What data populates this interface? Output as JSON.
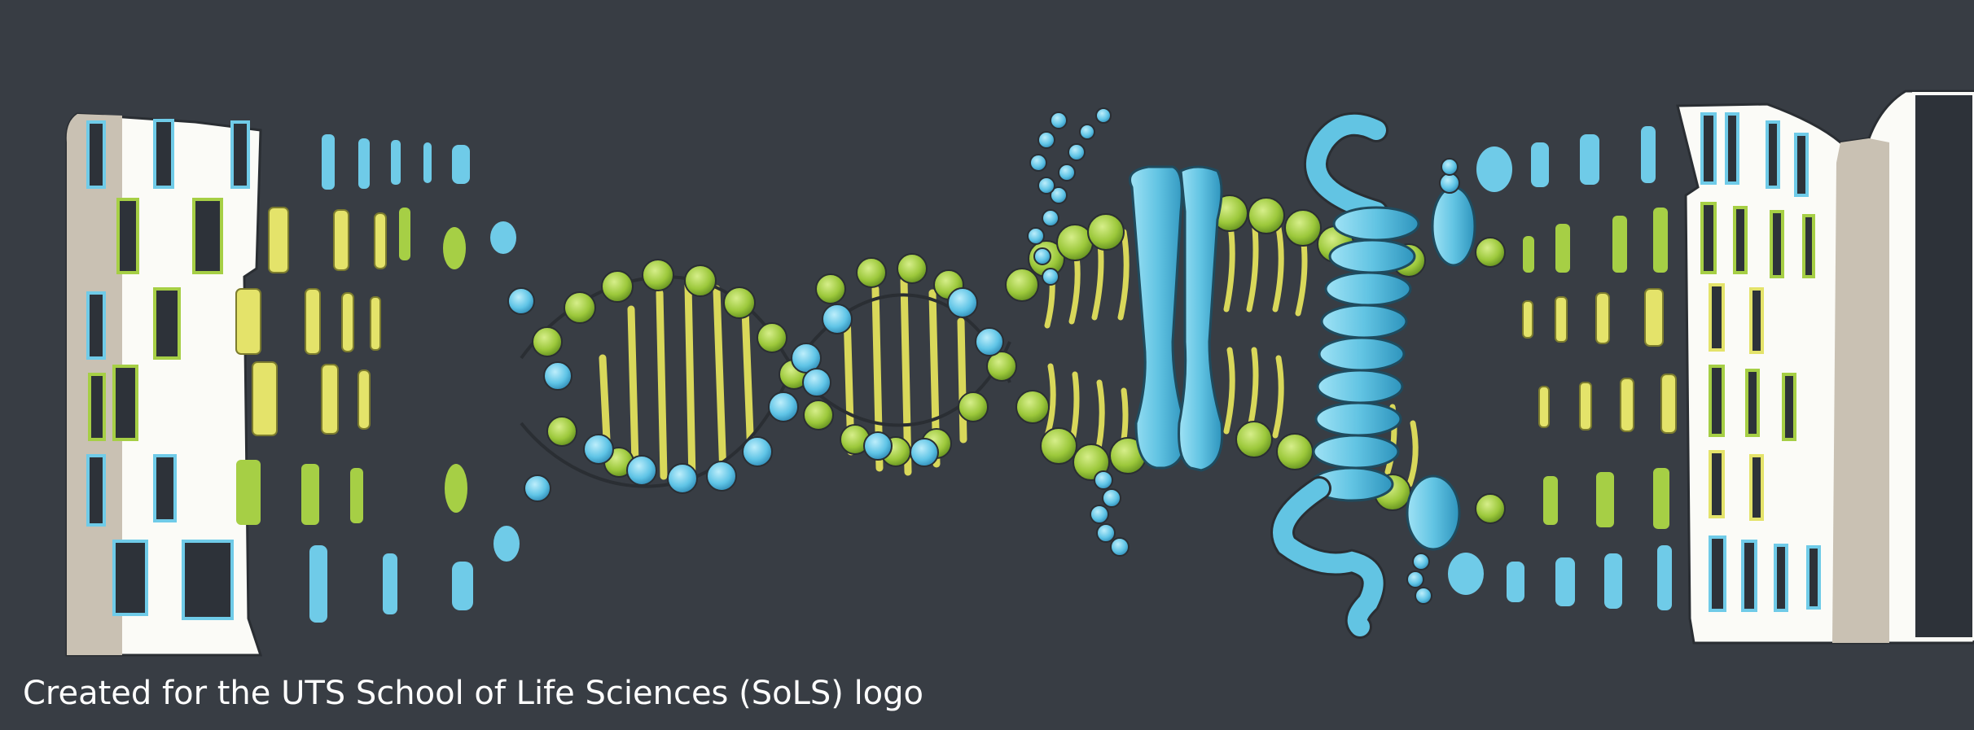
{
  "caption": "Created for the UTS School of Life Sciences (SoLS) logo",
  "colors": {
    "background": "#383d44",
    "building_white": "#fbfbf7",
    "building_shade": "#c9c1b3",
    "window_dark": "#2d3239",
    "accent_blue": "#6fcbe8",
    "accent_green": "#a6cf45",
    "accent_yellow": "#e4e36a"
  },
  "icons": [
    "left-building",
    "right-building",
    "dna-double-helix",
    "lipid-bilayer-membrane",
    "ion-channel-protein",
    "alpha-helix-protein",
    "glycan-chain"
  ]
}
